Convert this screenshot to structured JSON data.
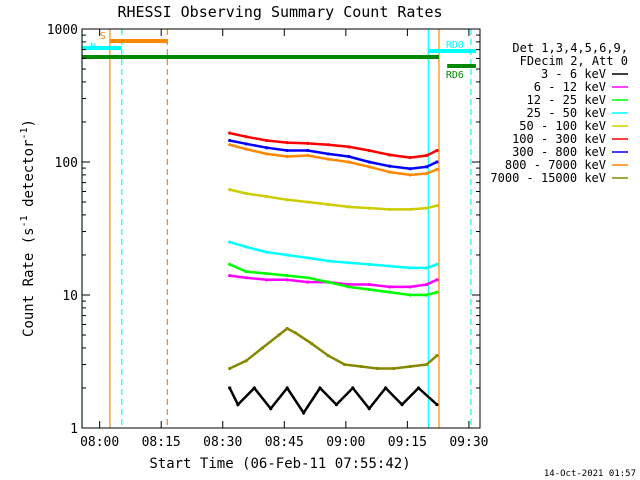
{
  "chart_data": {
    "type": "line",
    "title": "RHESSI Observing Summary Count Rates",
    "xlabel": "Start Time (06-Feb-11 07:55:42)",
    "ylabel": "Count Rate (s",
    "ylabel_sup": "-1",
    "ylabel_tail": " detector",
    "ylabel_end": ")",
    "x_units": "minutes since 07:55:42",
    "xlim": [
      0,
      97
    ],
    "ylim": [
      1,
      1000
    ],
    "yscale": "log",
    "x_ticks": [
      {
        "label": "08:00",
        "x": 4.3
      },
      {
        "label": "08:15",
        "x": 19.3
      },
      {
        "label": "08:30",
        "x": 34.3
      },
      {
        "label": "08:45",
        "x": 49.3
      },
      {
        "label": "09:00",
        "x": 64.3
      },
      {
        "label": "09:15",
        "x": 79.3
      },
      {
        "label": "09:30",
        "x": 94.3
      }
    ],
    "y_ticks": [
      {
        "label": "1",
        "value": 1
      },
      {
        "label": "10",
        "value": 10
      },
      {
        "label": "100",
        "value": 100
      },
      {
        "label": "1000",
        "value": 1000
      }
    ],
    "legend": {
      "position": "right",
      "header": [
        "Det 1,3,4,5,6,9,",
        "FDecim 2, Att 0"
      ]
    },
    "series": [
      {
        "name": "3 - 6 keV",
        "color": "#000000",
        "x": [
          36.0,
          38.0,
          42.0,
          46.0,
          50.0,
          54.0,
          58.0,
          62.0,
          66.0,
          70.0,
          74.0,
          78.0,
          82.0,
          86.5
        ],
        "values": [
          2.0,
          1.5,
          2.0,
          1.4,
          2.0,
          1.3,
          2.0,
          1.5,
          2.0,
          1.4,
          2.0,
          1.5,
          2.0,
          1.5
        ]
      },
      {
        "name": "6 - 12 keV",
        "color": "#ff00ff",
        "x": [
          36.0,
          40.0,
          45.0,
          50.0,
          55.0,
          60.0,
          65.0,
          70.0,
          75.0,
          80.0,
          84.0,
          86.5
        ],
        "values": [
          14.0,
          13.5,
          13.0,
          13.0,
          12.5,
          12.5,
          12.0,
          12.0,
          11.5,
          11.5,
          12.0,
          13.0
        ]
      },
      {
        "name": "12 - 25 keV",
        "color": "#00ff00",
        "x": [
          36.0,
          40.0,
          45.0,
          50.0,
          55.0,
          60.0,
          65.0,
          70.0,
          75.0,
          80.0,
          84.0,
          86.5
        ],
        "values": [
          17.0,
          15.0,
          14.5,
          14.0,
          13.5,
          12.5,
          11.5,
          11.0,
          10.5,
          10.0,
          10.0,
          10.5
        ]
      },
      {
        "name": "25 - 50 keV",
        "color": "#00ffff",
        "x": [
          36.0,
          40.0,
          45.0,
          50.0,
          55.0,
          60.0,
          65.0,
          70.0,
          75.0,
          80.0,
          84.0,
          86.5
        ],
        "values": [
          25.0,
          23.0,
          21.0,
          20.0,
          19.0,
          18.0,
          17.5,
          17.0,
          16.5,
          16.0,
          16.0,
          17.0
        ]
      },
      {
        "name": "50 - 100 keV",
        "color": "#cccc00",
        "x": [
          36.0,
          40.0,
          45.0,
          50.0,
          55.0,
          60.0,
          65.0,
          70.0,
          75.0,
          80.0,
          84.0,
          86.5
        ],
        "values": [
          62.0,
          58.0,
          55.0,
          52.0,
          50.0,
          48.0,
          46.0,
          45.0,
          44.0,
          44.0,
          45.0,
          47.0
        ]
      },
      {
        "name": "100 - 300 keV",
        "color": "#ff0000",
        "x": [
          36.0,
          40.0,
          45.0,
          50.0,
          55.0,
          60.0,
          65.0,
          70.0,
          75.0,
          80.0,
          84.0,
          86.5
        ],
        "values": [
          165.0,
          155.0,
          145.0,
          140.0,
          138.0,
          135.0,
          130.0,
          122.0,
          113.0,
          108.0,
          112.0,
          122.0
        ]
      },
      {
        "name": "300 - 800 keV",
        "color": "#0000ff",
        "x": [
          36.0,
          40.0,
          45.0,
          50.0,
          55.0,
          60.0,
          65.0,
          70.0,
          75.0,
          80.0,
          84.0,
          86.5
        ],
        "values": [
          145.0,
          137.0,
          128.0,
          122.0,
          122.0,
          115.0,
          110.0,
          100.0,
          93.0,
          89.0,
          92.0,
          100.0
        ]
      },
      {
        "name": "800 - 7000 keV",
        "color": "#ff8800",
        "x": [
          36.0,
          40.0,
          45.0,
          50.0,
          55.0,
          60.0,
          65.0,
          70.0,
          75.0,
          80.0,
          84.0,
          86.5
        ],
        "values": [
          135.0,
          125.0,
          115.0,
          110.0,
          112.0,
          105.0,
          100.0,
          92.0,
          84.0,
          80.0,
          82.0,
          88.0
        ]
      },
      {
        "name": "7000 - 15000 keV",
        "color": "#888800",
        "x": [
          36.0,
          40.0,
          44.0,
          48.0,
          50.0,
          52.0,
          56.0,
          60.0,
          64.0,
          68.0,
          72.0,
          76.0,
          80.0,
          84.0,
          86.5
        ],
        "values": [
          2.8,
          3.2,
          4.0,
          5.0,
          5.6,
          5.2,
          4.3,
          3.5,
          3.0,
          2.9,
          2.8,
          2.8,
          2.9,
          3.0,
          3.5
        ]
      }
    ],
    "annotations": [
      {
        "label": "S",
        "color": "#ff8800",
        "x": [
          6.8,
          20.8
        ]
      },
      {
        "label": "N",
        "color": "#00ffff",
        "x": [
          0.0,
          9.7
        ]
      },
      {
        "label": "RD0",
        "color": "#00ffff",
        "x": [
          84.4,
          96.0
        ]
      },
      {
        "label": "RD6",
        "color": "#008800",
        "x": [
          89.0,
          96.0
        ]
      },
      {
        "label": "",
        "color": "#008800",
        "x": [
          0.0,
          87.0
        ]
      }
    ],
    "vertical_markers": [
      {
        "x": 0.0,
        "color": "#00ffff",
        "style": "solid"
      },
      {
        "x": 6.8,
        "color": "#ff8800",
        "style": "solid"
      },
      {
        "x": 9.7,
        "color": "#00ffff",
        "style": "dashed"
      },
      {
        "x": 20.8,
        "color": "#ff8800",
        "style": "dashed"
      },
      {
        "x": 84.4,
        "color": "#00ffff",
        "style": "solid"
      },
      {
        "x": 87.0,
        "color": "#ff8800",
        "style": "solid"
      },
      {
        "x": 94.8,
        "color": "#00ffff",
        "style": "dashed"
      }
    ],
    "footer_timestamp": "14-Oct-2021 01:57"
  }
}
